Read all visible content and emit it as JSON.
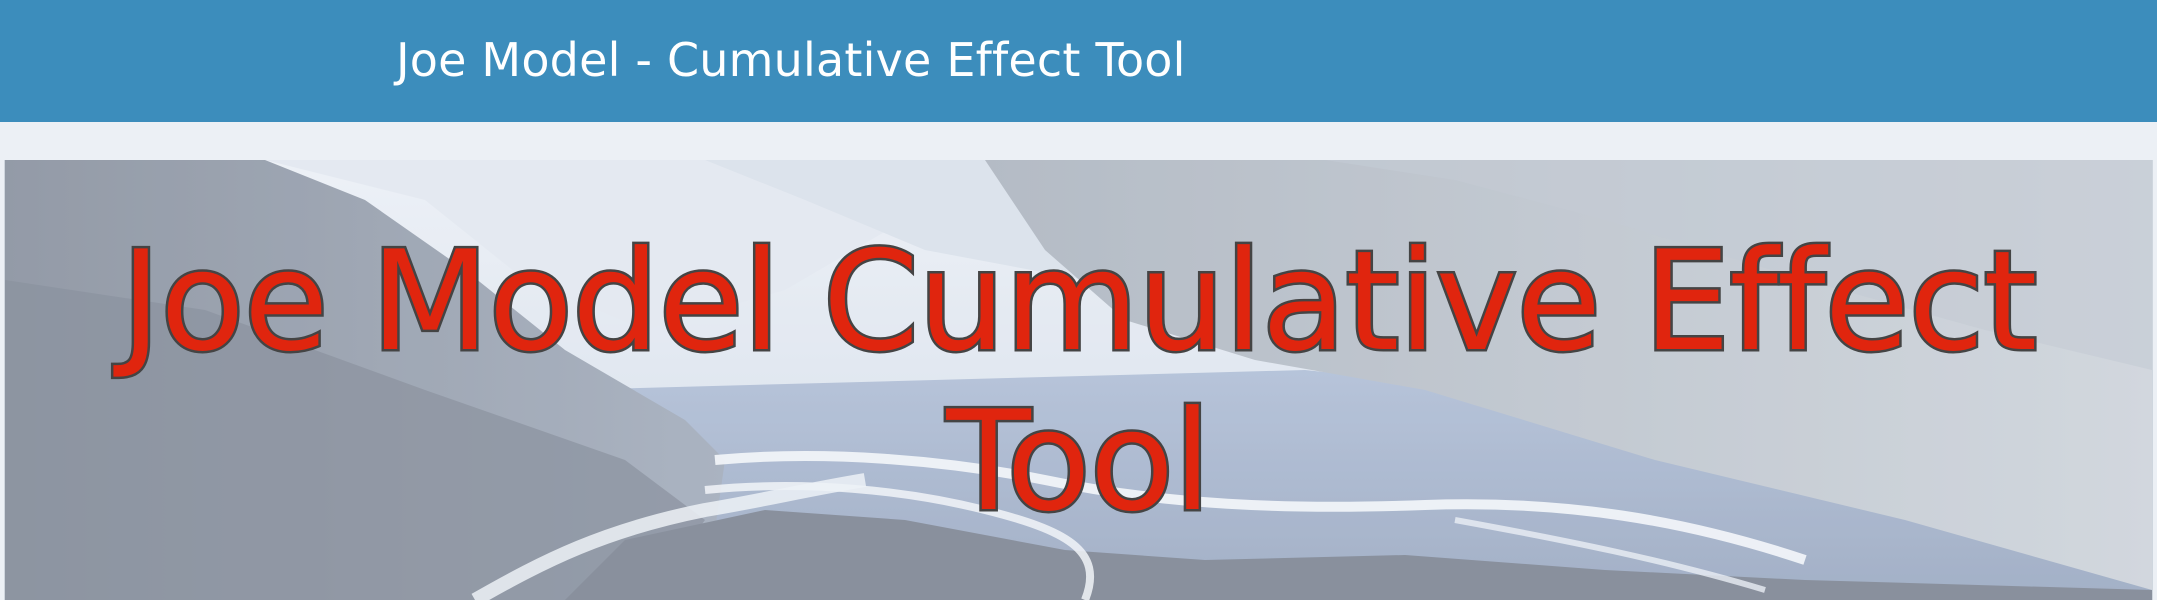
{
  "header": {
    "app_title": "Joe Model - Cumulative Effect Tool"
  },
  "hero": {
    "heading_line1": "Joe Model Cumulative Effect",
    "heading_line2": "Tool",
    "background_image": "river-valley-landscape-image"
  },
  "colors": {
    "navbar": "#3c8dbc",
    "content_background": "#ecf0f5",
    "heading_fill": "#e0250e",
    "heading_outline": "#444444"
  }
}
